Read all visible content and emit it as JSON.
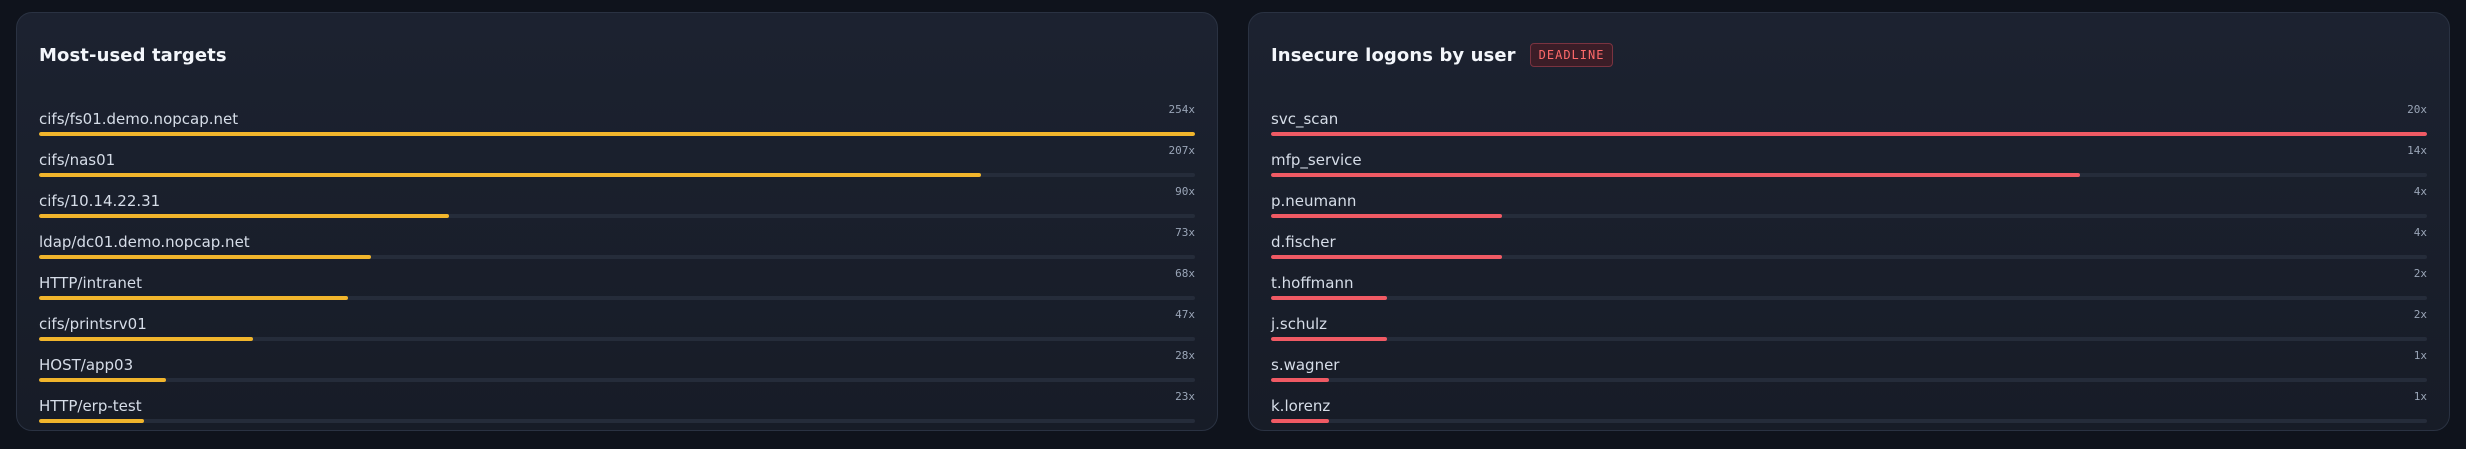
{
  "panels": {
    "targets": {
      "title": "Most-used targets",
      "color": "#f1b52c",
      "max_value": 254,
      "items": [
        {
          "label": "cifs/fs01.demo.nopcap.net",
          "count": "254x",
          "value": 254
        },
        {
          "label": "cifs/nas01",
          "count": "207x",
          "value": 207
        },
        {
          "label": "cifs/10.14.22.31",
          "count": "90x",
          "value": 90
        },
        {
          "label": "ldap/dc01.demo.nopcap.net",
          "count": "73x",
          "value": 73
        },
        {
          "label": "HTTP/intranet",
          "count": "68x",
          "value": 68
        },
        {
          "label": "cifs/printsrv01",
          "count": "47x",
          "value": 47
        },
        {
          "label": "HOST/app03",
          "count": "28x",
          "value": 28
        },
        {
          "label": "HTTP/erp-test",
          "count": "23x",
          "value": 23
        }
      ]
    },
    "logons": {
      "title": "Insecure logons by user",
      "badge": "DEADLINE",
      "color": "#f05a64",
      "max_value": 20,
      "items": [
        {
          "label": "svc_scan",
          "count": "20x",
          "value": 20
        },
        {
          "label": "mfp_service",
          "count": "14x",
          "value": 14
        },
        {
          "label": "p.neumann",
          "count": "4x",
          "value": 4
        },
        {
          "label": "d.fischer",
          "count": "4x",
          "value": 4
        },
        {
          "label": "t.hoffmann",
          "count": "2x",
          "value": 2
        },
        {
          "label": "j.schulz",
          "count": "2x",
          "value": 2
        },
        {
          "label": "s.wagner",
          "count": "1x",
          "value": 1
        },
        {
          "label": "k.lorenz",
          "count": "1x",
          "value": 1
        }
      ]
    }
  }
}
